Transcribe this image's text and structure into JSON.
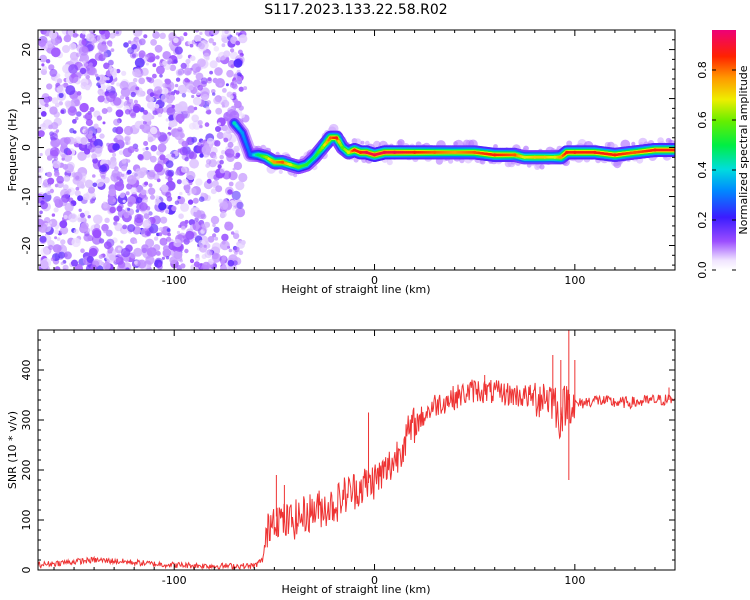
{
  "title": "S117.2023.133.22.58.R02",
  "chart_data": [
    {
      "type": "heatmap",
      "xlabel": "Height of straight line (km)",
      "ylabel": "Frequency (Hz)",
      "xlim": [
        -168,
        150
      ],
      "ylim": [
        -25,
        24
      ],
      "x_ticks": [
        -100,
        0,
        100
      ],
      "y_ticks": [
        -20,
        -10,
        0,
        10,
        20
      ],
      "colorbar": {
        "label": "Normalized spectral amplitude",
        "range": [
          0,
          0.96
        ],
        "ticks": [
          0.0,
          0.2,
          0.4,
          0.6,
          0.8
        ],
        "tick_labels": [
          "0.0",
          "0.2",
          "0.4",
          "0.6",
          "0.8"
        ]
      },
      "noise_region_x": [
        -168,
        -66
      ],
      "noise_amplitude": 0.15,
      "ridge": {
        "x": [
          -70,
          -66,
          -62,
          -58,
          -54,
          -50,
          -46,
          -42,
          -38,
          -34,
          -30,
          -26,
          -22,
          -19,
          -16,
          -13,
          -10,
          -7,
          -4,
          0,
          5,
          10,
          20,
          30,
          40,
          50,
          60,
          70,
          75,
          80,
          85,
          90,
          93,
          96,
          100,
          110,
          120,
          130,
          140,
          150
        ],
        "freq": [
          5,
          3,
          -1.5,
          -1.5,
          -2,
          -3,
          -3,
          -3.5,
          -4,
          -3.5,
          -2,
          0,
          2,
          2,
          0,
          -1,
          -0.5,
          -1,
          -1,
          -1.5,
          -1,
          -1,
          -1,
          -1,
          -1,
          -1,
          -1.5,
          -1.5,
          -2,
          -2,
          -2,
          -2,
          -2,
          -1,
          -1,
          -1,
          -1.5,
          -1,
          -0.5,
          -0.5
        ],
        "amplitude": [
          0.45,
          0.35,
          0.3,
          0.5,
          0.65,
          0.8,
          0.85,
          0.7,
          0.6,
          0.55,
          0.5,
          0.65,
          0.85,
          0.9,
          0.6,
          0.7,
          0.9,
          0.9,
          0.95,
          0.95,
          0.95,
          0.95,
          0.9,
          0.85,
          0.8,
          0.85,
          0.9,
          0.85,
          0.7,
          0.75,
          0.75,
          0.7,
          0.8,
          0.9,
          0.9,
          0.9,
          0.9,
          0.85,
          0.9,
          0.9
        ]
      }
    },
    {
      "type": "line",
      "xlabel": "Height of straight line (km)",
      "ylabel": "SNR (10 * v/v)",
      "xlim": [
        -168,
        150
      ],
      "ylim": [
        0,
        480
      ],
      "x_ticks": [
        -100,
        0,
        100
      ],
      "y_ticks": [
        0,
        100,
        200,
        300,
        400
      ],
      "color": "#ee3333",
      "series": [
        {
          "x": [
            -168,
            -155,
            -140,
            -130,
            -120,
            -110,
            -100,
            -90,
            -80,
            -70,
            -60,
            -56,
            -54,
            -52,
            -50,
            -45,
            -40,
            -35,
            -30,
            -25,
            -20,
            -15,
            -10,
            -5,
            0,
            5,
            10,
            15,
            20,
            25,
            30,
            40,
            50,
            60,
            70,
            80,
            85,
            90,
            92,
            95,
            97,
            100,
            110,
            120,
            130,
            140,
            150
          ],
          "y": [
            10,
            15,
            20,
            18,
            15,
            12,
            10,
            9,
            8,
            8,
            8,
            20,
            60,
            100,
            110,
            95,
            100,
            110,
            120,
            125,
            130,
            150,
            160,
            170,
            180,
            195,
            220,
            260,
            290,
            310,
            330,
            345,
            360,
            355,
            350,
            345,
            350,
            340,
            300,
            330,
            340,
            330,
            340,
            335,
            335,
            340,
            340
          ]
        }
      ],
      "spikes": [
        {
          "x": -49,
          "y": 190
        },
        {
          "x": -45,
          "y": 170
        },
        {
          "x": -3,
          "y": 315
        },
        {
          "x": 15,
          "y": 265
        },
        {
          "x": 55,
          "y": 390
        },
        {
          "x": 89,
          "y": 430
        },
        {
          "x": 93,
          "y": 420
        },
        {
          "x": 97,
          "y": 480
        },
        {
          "x": 97,
          "y": 180
        },
        {
          "x": 100,
          "y": 420
        },
        {
          "x": 147,
          "y": 365
        }
      ]
    }
  ]
}
